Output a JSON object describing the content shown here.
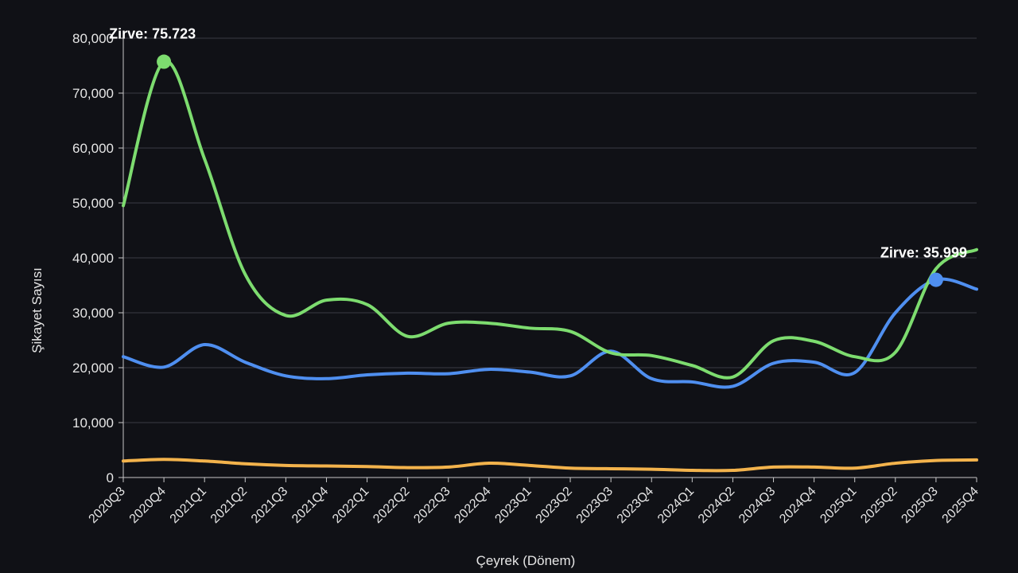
{
  "chart_data": {
    "type": "line",
    "title": "",
    "xlabel": "Çeyrek (Dönem)",
    "ylabel": "Şikayet Sayısı",
    "ylim": [
      0,
      80000
    ],
    "y_ticks": [
      0,
      10000,
      20000,
      30000,
      40000,
      50000,
      60000,
      70000,
      80000
    ],
    "y_tick_labels": [
      "0",
      "10,000",
      "20,000",
      "30,000",
      "40,000",
      "50,000",
      "60,000",
      "70,000",
      "80,000"
    ],
    "grid": true,
    "categories": [
      "2020Q3",
      "2020Q4",
      "2021Q1",
      "2021Q2",
      "2021Q3",
      "2021Q4",
      "2022Q1",
      "2022Q2",
      "2022Q3",
      "2022Q4",
      "2023Q1",
      "2023Q2",
      "2023Q3",
      "2023Q4",
      "2024Q1",
      "2024Q2",
      "2024Q3",
      "2024Q4",
      "2025Q1",
      "2025Q2",
      "2025Q3",
      "2025Q4"
    ],
    "series": [
      {
        "name": "green-series",
        "color": "#7ddc6f",
        "values": [
          49500,
          75723,
          58000,
          37000,
          29500,
          32300,
          31500,
          25700,
          28100,
          28100,
          27200,
          26600,
          22700,
          22200,
          20400,
          18300,
          24900,
          24800,
          22000,
          22800,
          38000,
          41500
        ]
      },
      {
        "name": "blue-series",
        "color": "#4f8ff0",
        "values": [
          22000,
          20100,
          24200,
          21000,
          18500,
          18000,
          18700,
          19000,
          18900,
          19700,
          19200,
          18500,
          23000,
          18000,
          17400,
          16600,
          20800,
          21000,
          19100,
          30000,
          35999,
          34300
        ]
      },
      {
        "name": "orange-series",
        "color": "#f3b34c",
        "values": [
          3000,
          3300,
          3000,
          2500,
          2200,
          2100,
          2000,
          1800,
          1900,
          2600,
          2200,
          1700,
          1600,
          1500,
          1300,
          1300,
          1900,
          1900,
          1700,
          2600,
          3100,
          3200
        ]
      }
    ],
    "annotations": [
      {
        "text": "Zirve: 75.723",
        "series": 0,
        "index": 1,
        "value": 75723
      },
      {
        "text": "Zirve: 35.999",
        "series": 1,
        "index": 20,
        "value": 35999
      }
    ]
  }
}
